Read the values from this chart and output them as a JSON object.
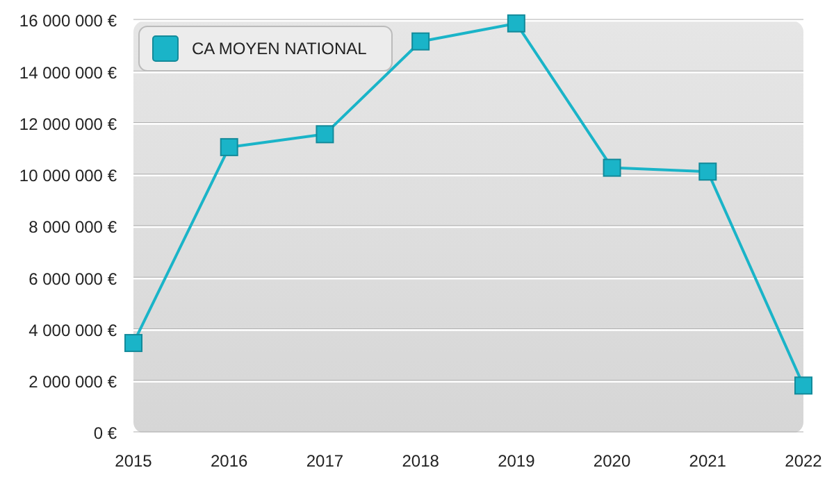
{
  "chart_data": {
    "type": "line",
    "x": [
      2015,
      2016,
      2017,
      2018,
      2019,
      2020,
      2021,
      2022
    ],
    "series": [
      {
        "name": "CA MOYEN NATIONAL",
        "color": "#1ab4c8",
        "values": [
          3500000,
          11100000,
          11600000,
          15200000,
          15900000,
          10300000,
          10150000,
          1850000
        ]
      }
    ],
    "xlim": [
      2015,
      2022
    ],
    "xticks": [
      2015,
      2016,
      2017,
      2018,
      2019,
      2020,
      2021,
      2022
    ],
    "ylim": [
      0,
      16000000
    ],
    "yticks": [
      {
        "value": 0,
        "label": "0 €"
      },
      {
        "value": 2000000,
        "label": "2 000 000 €"
      },
      {
        "value": 4000000,
        "label": "4 000 000 €"
      },
      {
        "value": 6000000,
        "label": "6 000 000 €"
      },
      {
        "value": 8000000,
        "label": "8 000 000 €"
      },
      {
        "value": 10000000,
        "label": "10 000 000 €"
      },
      {
        "value": 12000000,
        "label": "12 000 000 €"
      },
      {
        "value": 14000000,
        "label": "14 000 000 €"
      },
      {
        "value": 16000000,
        "label": "16 000 000 €"
      }
    ],
    "grid": "y",
    "legend": "top left",
    "marker": "square",
    "line_style": "solid"
  }
}
